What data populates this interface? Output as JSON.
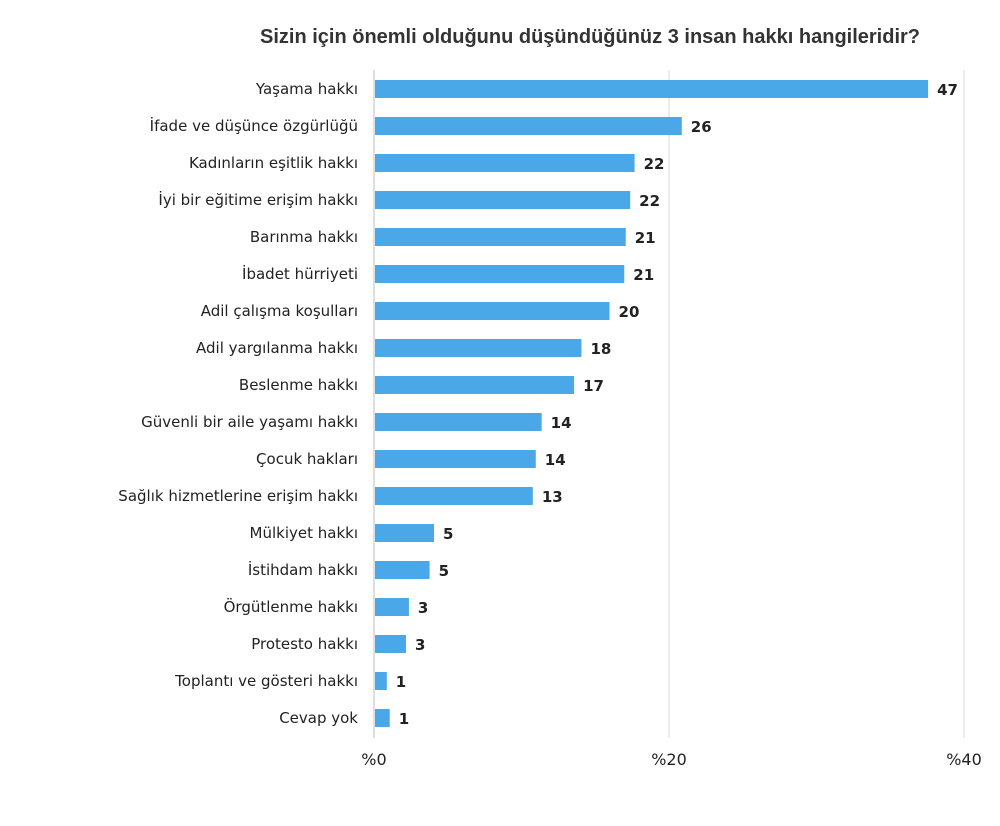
{
  "chart_data": {
    "type": "bar",
    "orientation": "horizontal",
    "title": "Sizin için önemli olduğunu düşündüğünüz 3 insan hakkı hangileridir?",
    "categories": [
      "Yaşama hakkı",
      "İfade ve düşünce özgürlüğü",
      "Kadınların eşitlik hakkı",
      "İyi bir eğitime erişim hakkı",
      "Barınma hakkı",
      "İbadet hürriyeti",
      "Adil çalışma koşulları",
      "Adil yargılanma hakkı",
      "Beslenme hakkı",
      "Güvenli bir aile yaşamı hakkı",
      "Çocuk hakları",
      "Sağlık hizmetlerine erişim hakkı",
      "Mülkiyet hakkı",
      "İstihdam hakkı",
      "Örgütlenme hakkı",
      "Protesto hakkı",
      "Toplantı ve gösteri hakkı",
      "Cevap yok"
    ],
    "values": [
      47,
      26,
      22,
      22,
      21,
      21,
      20,
      18,
      17,
      14,
      14,
      13,
      5,
      5,
      3,
      3,
      1,
      1
    ],
    "bar_values": [
      37.5,
      20.8,
      17.6,
      17.3,
      17.0,
      16.9,
      15.9,
      14.0,
      13.5,
      11.3,
      10.9,
      10.7,
      4.0,
      3.7,
      2.3,
      2.1,
      0.8,
      1.0
    ],
    "xlim": [
      0,
      40
    ],
    "xticks": [
      0,
      20,
      40
    ],
    "xtick_labels": [
      "%0",
      "%20",
      "%40"
    ],
    "grid": "vertical",
    "legend": "none",
    "colors": {
      "bar": "#4BA8E8",
      "gridline": "#D9D9D9",
      "text": "#222222"
    }
  }
}
